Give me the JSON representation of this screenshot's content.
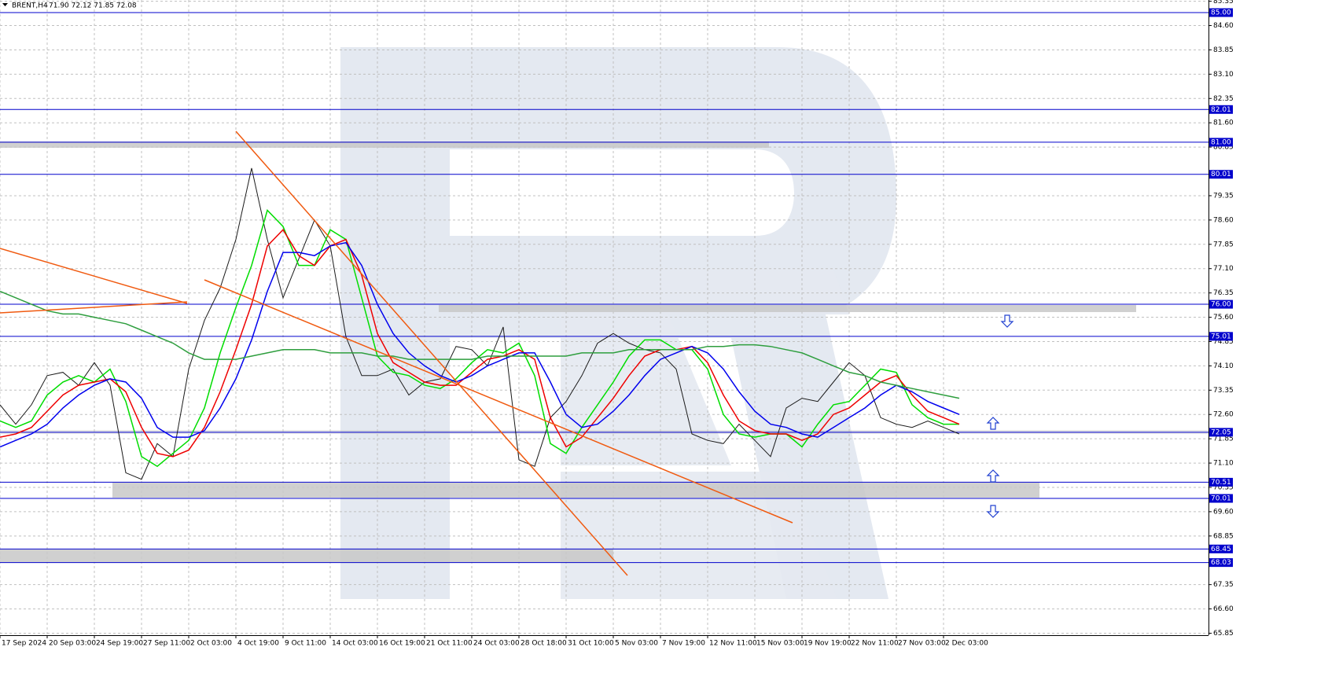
{
  "chart_data": {
    "type": "line",
    "symbol": "BRENT,H4",
    "quote": "71.90 72.12 71.85 72.08",
    "xlim": [
      0,
      384.25
    ],
    "ylim": [
      65.85,
      85.35
    ],
    "grid": true,
    "xticks": [
      {
        "value": 0,
        "label": "17 Sep 2024"
      },
      {
        "value": 15,
        "label": "20 Sep 03:00"
      },
      {
        "value": 30,
        "label": "24 Sep 19:00"
      },
      {
        "value": 45,
        "label": "27 Sep 11:00"
      },
      {
        "value": 60,
        "label": "2 Oct 03:00"
      },
      {
        "value": 75,
        "label": "4 Oct 19:00"
      },
      {
        "value": 90,
        "label": "9 Oct 11:00"
      },
      {
        "value": 105,
        "label": "14 Oct 03:00"
      },
      {
        "value": 120,
        "label": "16 Oct 19:00"
      },
      {
        "value": 135,
        "label": "21 Oct 11:00"
      },
      {
        "value": 150,
        "label": "24 Oct 03:00"
      },
      {
        "value": 165,
        "label": "28 Oct 18:00"
      },
      {
        "value": 180,
        "label": "31 Oct 10:00"
      },
      {
        "value": 195,
        "label": "5 Nov 03:00"
      },
      {
        "value": 210,
        "label": "7 Nov 19:00"
      },
      {
        "value": 225,
        "label": "12 Nov 11:00"
      },
      {
        "value": 240,
        "label": "15 Nov 03:00"
      },
      {
        "value": 255,
        "label": "19 Nov 19:00"
      },
      {
        "value": 270,
        "label": "22 Nov 11:00"
      },
      {
        "value": 285,
        "label": "27 Nov 03:00"
      },
      {
        "value": 300,
        "label": "2 Dec 03:00"
      }
    ],
    "yticks": [
      85.35,
      {
        "value": 84.6,
        "label": "84.60"
      },
      83.85,
      {
        "value": 83.1,
        "label": "83.10"
      },
      82.35,
      {
        "value": 81.6,
        "label": "81.60"
      },
      80.85,
      79.35,
      {
        "value": 78.6,
        "label": "78.60"
      },
      77.85,
      {
        "value": 77.1,
        "label": "77.10"
      },
      76.35,
      {
        "value": 75.6,
        "label": "75.60"
      },
      74.85,
      {
        "value": 74.1,
        "label": "74.10"
      },
      73.35,
      {
        "value": 72.6,
        "label": "72.60"
      },
      71.85,
      {
        "value": 71.1,
        "label": "71.10"
      },
      70.35,
      {
        "value": 69.6,
        "label": "69.60"
      },
      68.85,
      67.35,
      {
        "value": 66.6,
        "label": "66.60"
      },
      65.85
    ],
    "levels": [
      {
        "value": 85,
        "label": "85.00"
      },
      {
        "value": 82.01,
        "label": "82.01"
      },
      {
        "value": 81,
        "label": "81.00"
      },
      {
        "value": 80.01,
        "label": "80.01"
      },
      {
        "value": 76,
        "label": "76.00"
      },
      {
        "value": 75.01,
        "label": "75.01"
      },
      {
        "value": 72.05,
        "label": "72.05"
      },
      {
        "value": 70.51,
        "label": "70.51"
      },
      {
        "value": 70.01,
        "label": "70.01"
      },
      {
        "value": 68.45,
        "label": "68.45"
      },
      {
        "value": 68.03,
        "label": "68.03"
      }
    ],
    "level_color": "#0000cc",
    "x": [
      0,
      5,
      10,
      15,
      20,
      25,
      30,
      35,
      40,
      45,
      50,
      55,
      60,
      65,
      70,
      75,
      80,
      85,
      90,
      95,
      100,
      105,
      110,
      115,
      120,
      125,
      130,
      135,
      140,
      145,
      150,
      155,
      160,
      165,
      170,
      175,
      180,
      185,
      190,
      195,
      200,
      205,
      210,
      215,
      220,
      225,
      230,
      235,
      240,
      245,
      250,
      255,
      260,
      265,
      270,
      275,
      280,
      285,
      290,
      295,
      300,
      305
    ],
    "series": [
      {
        "color": "#1a1a1a",
        "values": [
          72.9,
          72.3,
          72.9,
          73.8,
          73.9,
          73.5,
          74.2,
          73.5,
          70.8,
          70.6,
          71.7,
          71.3,
          74.0,
          75.5,
          76.5,
          78.0,
          80.2,
          78.0,
          76.2,
          77.4,
          78.6,
          77.8,
          75.0,
          73.8,
          73.8,
          74.0,
          73.2,
          73.6,
          73.7,
          74.7,
          74.6,
          74.1,
          75.3,
          71.2,
          71.0,
          72.5,
          73.0,
          73.8,
          74.8,
          75.1,
          74.8,
          74.6,
          74.5,
          74.0,
          72.0,
          71.8,
          71.7,
          72.3,
          71.8,
          71.3,
          72.8,
          73.1,
          73.0,
          73.6,
          74.2,
          73.8,
          72.5,
          72.3,
          72.2,
          72.4,
          72.2,
          72.0
        ]
      },
      {
        "color": "#00dd00",
        "values": [
          72.4,
          72.2,
          72.4,
          73.2,
          73.6,
          73.8,
          73.6,
          74.0,
          73.0,
          71.3,
          71.0,
          71.4,
          71.8,
          72.8,
          74.5,
          75.9,
          77.2,
          78.9,
          78.4,
          77.2,
          77.2,
          78.3,
          78.0,
          76.2,
          74.4,
          73.9,
          73.8,
          73.5,
          73.4,
          73.7,
          74.2,
          74.6,
          74.5,
          74.8,
          73.8,
          71.7,
          71.4,
          72.2,
          72.9,
          73.6,
          74.4,
          74.9,
          74.9,
          74.6,
          74.6,
          74.0,
          72.6,
          72.0,
          71.9,
          72.0,
          72.0,
          71.6,
          72.3,
          72.9,
          73.0,
          73.5,
          74.0,
          73.9,
          72.9,
          72.5,
          72.3,
          72.3
        ]
      },
      {
        "color": "#ee0000",
        "values": [
          71.9,
          72.0,
          72.2,
          72.7,
          73.2,
          73.5,
          73.6,
          73.7,
          73.3,
          72.2,
          71.4,
          71.3,
          71.5,
          72.2,
          73.3,
          74.6,
          76.0,
          77.8,
          78.3,
          77.5,
          77.2,
          77.8,
          78.0,
          76.9,
          75.1,
          74.2,
          73.9,
          73.6,
          73.5,
          73.5,
          73.9,
          74.3,
          74.4,
          74.6,
          74.3,
          72.5,
          71.6,
          71.9,
          72.5,
          73.1,
          73.8,
          74.4,
          74.6,
          74.6,
          74.7,
          74.2,
          73.2,
          72.4,
          72.1,
          72.0,
          72.0,
          71.8,
          72.0,
          72.6,
          72.8,
          73.2,
          73.6,
          73.8,
          73.2,
          72.7,
          72.5,
          72.3
        ]
      },
      {
        "color": "#0000ee",
        "values": [
          71.6,
          71.8,
          72.0,
          72.3,
          72.8,
          73.2,
          73.5,
          73.7,
          73.6,
          73.1,
          72.2,
          71.9,
          71.9,
          72.1,
          72.8,
          73.7,
          74.9,
          76.4,
          77.6,
          77.6,
          77.5,
          77.8,
          77.9,
          77.2,
          76.0,
          75.1,
          74.5,
          74.1,
          73.8,
          73.6,
          73.8,
          74.1,
          74.3,
          74.5,
          74.5,
          73.6,
          72.6,
          72.2,
          72.3,
          72.7,
          73.2,
          73.8,
          74.3,
          74.5,
          74.7,
          74.5,
          74.0,
          73.3,
          72.7,
          72.3,
          72.2,
          72.0,
          71.9,
          72.2,
          72.5,
          72.8,
          73.2,
          73.5,
          73.3,
          73.0,
          72.8,
          72.6
        ]
      },
      {
        "color": "#2e9e3e",
        "values": [
          76.4,
          76.2,
          76.0,
          75.8,
          75.7,
          75.7,
          75.6,
          75.5,
          75.4,
          75.2,
          75.0,
          74.8,
          74.5,
          74.3,
          74.3,
          74.3,
          74.4,
          74.5,
          74.6,
          74.6,
          74.6,
          74.5,
          74.5,
          74.5,
          74.4,
          74.4,
          74.3,
          74.3,
          74.3,
          74.3,
          74.3,
          74.4,
          74.4,
          74.4,
          74.4,
          74.4,
          74.4,
          74.5,
          74.5,
          74.5,
          74.6,
          74.6,
          74.6,
          74.6,
          74.6,
          74.7,
          74.7,
          74.75,
          74.75,
          74.7,
          74.6,
          74.5,
          74.3,
          74.1,
          73.9,
          73.8,
          73.6,
          73.5,
          73.4,
          73.3,
          73.2,
          73.1
        ]
      }
    ]
  }
}
